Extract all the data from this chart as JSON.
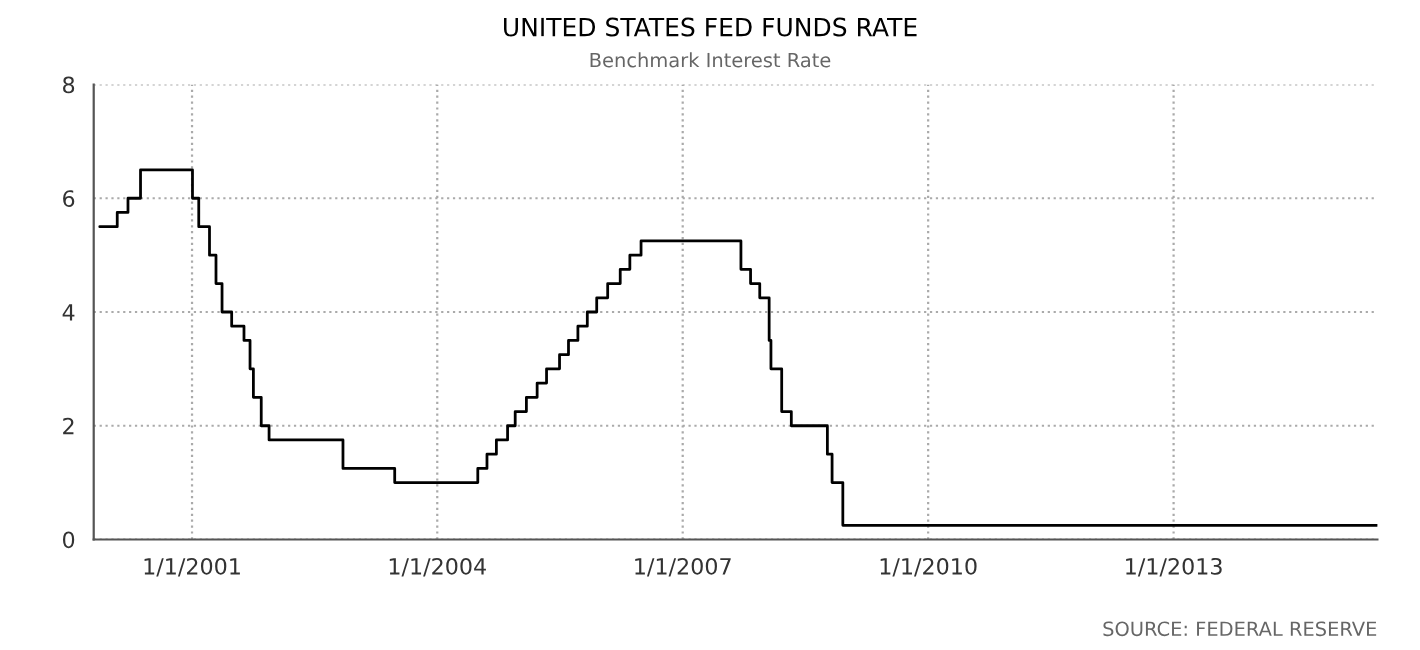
{
  "chart_data": {
    "type": "step",
    "title": "UNITED STATES FED FUNDS RATE",
    "subtitle": "Benchmark Interest Rate",
    "x": [
      "1999-11-16",
      "2000-02-02",
      "2000-03-21",
      "2000-05-16",
      "2001-01-03",
      "2001-01-31",
      "2001-03-20",
      "2001-04-18",
      "2001-05-15",
      "2001-06-27",
      "2001-08-21",
      "2001-09-17",
      "2001-10-02",
      "2001-11-06",
      "2001-12-11",
      "2002-11-06",
      "2003-06-25",
      "2004-06-30",
      "2004-08-10",
      "2004-09-21",
      "2004-11-10",
      "2004-12-14",
      "2005-02-02",
      "2005-03-22",
      "2005-05-03",
      "2005-06-30",
      "2005-08-09",
      "2005-09-20",
      "2005-11-01",
      "2005-12-13",
      "2006-01-31",
      "2006-03-28",
      "2006-05-10",
      "2006-06-29",
      "2007-09-18",
      "2007-10-31",
      "2007-12-11",
      "2008-01-22",
      "2008-01-30",
      "2008-03-18",
      "2008-04-30",
      "2008-10-08",
      "2008-10-29",
      "2008-12-16",
      "2015-06-30"
    ],
    "series": [
      {
        "color": "#000000",
        "values": [
          5.5,
          5.75,
          6.0,
          6.5,
          6.0,
          5.5,
          5.0,
          4.5,
          4.0,
          3.75,
          3.5,
          3.0,
          2.5,
          2.0,
          1.75,
          1.25,
          1.0,
          1.25,
          1.5,
          1.75,
          2.0,
          2.25,
          2.5,
          2.75,
          3.0,
          3.25,
          3.5,
          3.75,
          4.0,
          4.25,
          4.5,
          4.75,
          5.0,
          5.25,
          4.75,
          4.5,
          4.25,
          3.5,
          3.0,
          2.25,
          2.0,
          1.5,
          1.0,
          0.25,
          0.25
        ]
      }
    ],
    "xlim": [
      "1999-10-20",
      "2015-06-30"
    ],
    "xticks": [
      {
        "value": "2001-01-01",
        "label": "1/1/2001"
      },
      {
        "value": "2004-01-01",
        "label": "1/1/2004"
      },
      {
        "value": "2007-01-01",
        "label": "1/1/2007"
      },
      {
        "value": "2010-01-01",
        "label": "1/1/2010"
      },
      {
        "value": "2013-01-01",
        "label": "1/1/2013"
      }
    ],
    "ylim": [
      0,
      8
    ],
    "yticks": [
      0,
      2,
      4,
      6,
      8
    ],
    "grid": true,
    "line_style": "solid",
    "annotations": [
      "SOURCE: FEDERAL RESERVE"
    ]
  }
}
